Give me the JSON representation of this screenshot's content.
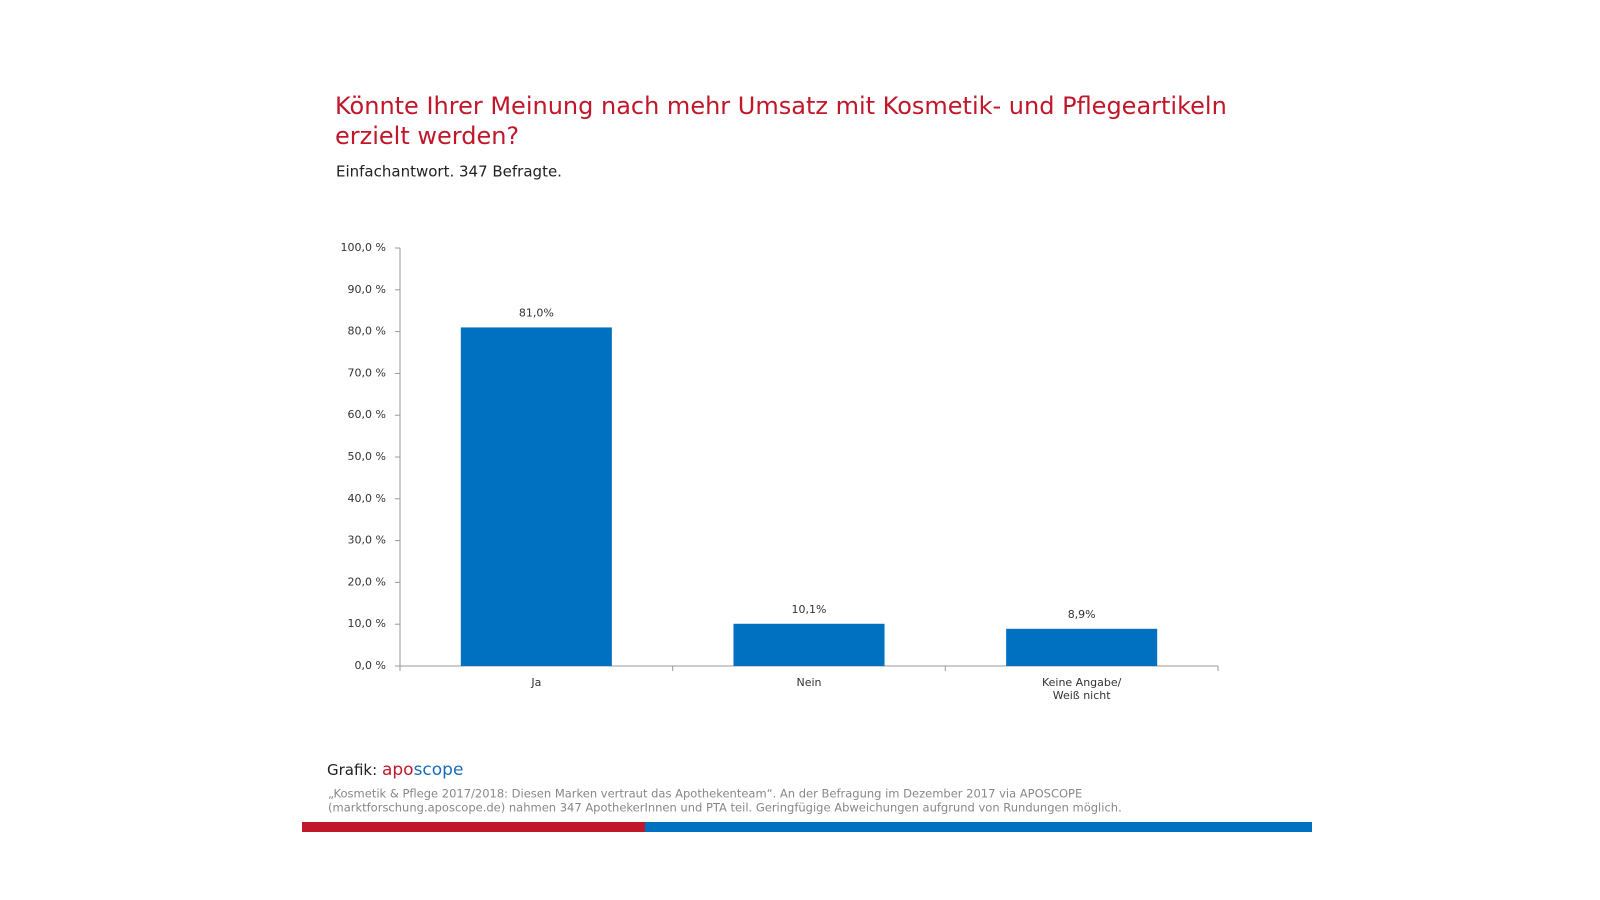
{
  "chart_data": {
    "type": "bar",
    "title_lines": [
      "Könnte Ihrer Meinung nach mehr Umsatz mit Kosmetik- und Pflegeartikeln",
      "erzielt werden?"
    ],
    "subtitle": "Einfachantwort. 347 Befragte.",
    "categories": [
      "Ja",
      "Nein",
      "Keine Angabe/\nWeiß nicht"
    ],
    "values": [
      81.0,
      10.1,
      8.9
    ],
    "value_labels": [
      "81,0%",
      "10,1%",
      "8,9%"
    ],
    "color": "#0070c0",
    "ylim": [
      0,
      100
    ],
    "yticks": [
      {
        "value": 0,
        "label": "0,0 %"
      },
      {
        "value": 10,
        "label": "10,0 %"
      },
      {
        "value": 20,
        "label": "20,0 %"
      },
      {
        "value": 30,
        "label": "30,0 %"
      },
      {
        "value": 40,
        "label": "40,0 %"
      },
      {
        "value": 50,
        "label": "50,0 %"
      },
      {
        "value": 60,
        "label": "60,0 %"
      },
      {
        "value": 70,
        "label": "70,0 %"
      },
      {
        "value": 80,
        "label": "80,0 %"
      },
      {
        "value": 90,
        "label": "90,0 %"
      },
      {
        "value": 100,
        "label": "100,0 %"
      }
    ],
    "grid": false
  },
  "footer": {
    "credit": "Grafik:",
    "logo_apo": "apo",
    "logo_scope": "scope",
    "note_lines": [
      "„Kosmetik & Pflege 2017/2018: Diesen Marken vertraut das Apothekenteam“. An der Befragung im Dezember 2017 via APOSCOPE",
      "(marktforschung.aposcope.de) nahmen 347 ApothekerInnen und PTA teil. Geringfügige Abweichungen aufgrund von Rundungen möglich."
    ]
  }
}
